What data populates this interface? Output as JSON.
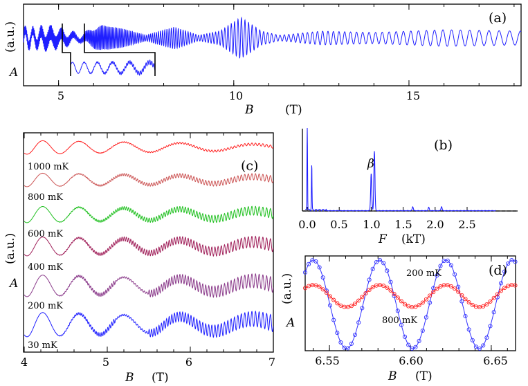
{
  "panels": {
    "a": {
      "label": "(a)",
      "xlabel": "B",
      "xunit": "(T)",
      "ylabel": "A",
      "yunit": "(a.u.)",
      "xticks": [
        "5",
        "10",
        "15"
      ],
      "color": "#1f1fff"
    },
    "b": {
      "label": "(b)",
      "xlabel": "F",
      "xunit": "(kT)",
      "annotation": "β",
      "xticks": [
        "0.0",
        "0.5",
        "1.0",
        "1.5",
        "2.0",
        "2.5"
      ],
      "color": "#1f1fff"
    },
    "c": {
      "label": "(c)",
      "xlabel": "B",
      "xunit": "(T)",
      "ylabel": "A",
      "yunit": "(a.u.)",
      "xticks": [
        "4",
        "5",
        "6",
        "7"
      ],
      "traces": [
        {
          "temp": "1000 mK",
          "color": "#ff2020"
        },
        {
          "temp": "800 mK",
          "color": "#cc5555"
        },
        {
          "temp": "600 mK",
          "color": "#20c020"
        },
        {
          "temp": "400 mK",
          "color": "#a0205a"
        },
        {
          "temp": "200 mK",
          "color": "#8a3a8a"
        },
        {
          "temp": "30 mK",
          "color": "#2020ff"
        }
      ]
    },
    "d": {
      "label": "(d)",
      "xlabel": "B",
      "xunit": "(T)",
      "ylabel": "A",
      "yunit": "(a.u.)",
      "xticks": [
        "6.55",
        "6.60",
        "6.65"
      ],
      "traces": [
        {
          "temp": "200 mK",
          "color": "#3030ff"
        },
        {
          "temp": "800 mK",
          "color": "#ff2020"
        }
      ]
    }
  },
  "chart_data": [
    {
      "type": "line",
      "panel": "a",
      "xlim": [
        4,
        18.2
      ],
      "description_series": "quantum oscillation amplitude vs field with beating nodes near 5.5, 7.5, 9.0, 11.5 T",
      "series": [
        {
          "color": "#1f1fff",
          "x_range": [
            4,
            18.2
          ]
        }
      ],
      "inset_xlim": [
        5.3,
        7.6
      ]
    },
    {
      "type": "line",
      "panel": "b",
      "xlim": [
        -0.05,
        3.0
      ],
      "peaks_kT": [
        0.0,
        0.07,
        1.0,
        1.05,
        1.65,
        1.9,
        2.1
      ],
      "peak_heights": [
        1.0,
        0.55,
        0.45,
        0.72,
        0.05,
        0.04,
        0.05
      ]
    },
    {
      "type": "line",
      "panel": "c",
      "xlim": [
        4,
        7
      ],
      "series": [
        {
          "name": "1000 mK",
          "color": "#ff2020"
        },
        {
          "name": "800 mK",
          "color": "#cc5555"
        },
        {
          "name": "600 mK",
          "color": "#20c020"
        },
        {
          "name": "400 mK",
          "color": "#a0205a"
        },
        {
          "name": "200 mK",
          "color": "#8a3a8a"
        },
        {
          "name": "30 mK",
          "color": "#2020ff"
        }
      ]
    },
    {
      "type": "line",
      "panel": "d",
      "xlim": [
        6.535,
        6.665
      ],
      "series": [
        {
          "name": "200 mK",
          "color": "#3030ff",
          "period_T": 0.041,
          "amplitude": 1.0
        },
        {
          "name": "800 mK",
          "color": "#ff2020",
          "period_T": 0.041,
          "amplitude": 0.25
        }
      ]
    }
  ]
}
